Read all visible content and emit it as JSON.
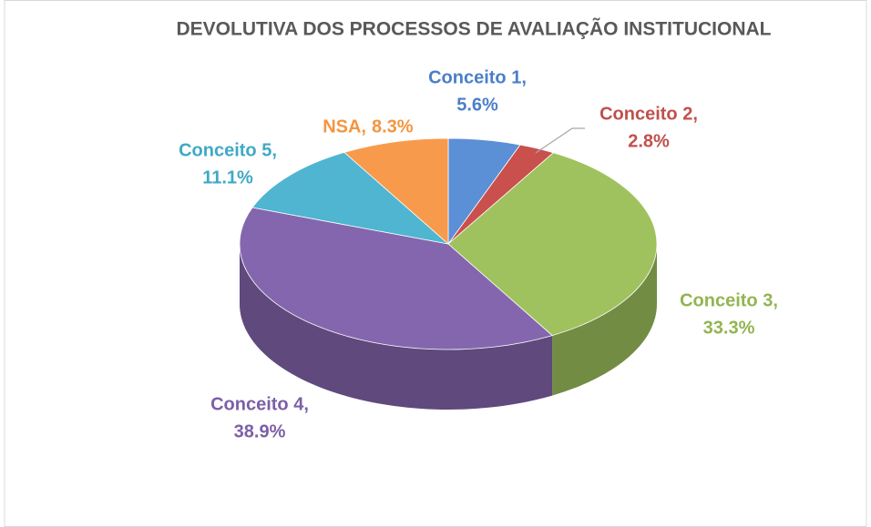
{
  "chart_data": {
    "type": "pie3d",
    "title": "DEVOLUTIVA DOS PROCESSOS DE AVALIAÇÃO INSTITUCIONAL",
    "categories": [
      "Conceito 1,",
      "Conceito 2,",
      "Conceito 3,",
      "Conceito 4,",
      "Conceito 5,",
      "NSA,"
    ],
    "values": [
      5.6,
      2.8,
      33.3,
      38.9,
      11.1,
      8.3
    ],
    "value_labels": [
      "5.6%",
      "2.8%",
      "33.3%",
      "38.9%",
      "11.1%",
      "8.3%"
    ],
    "colors": [
      "#5b8fd6",
      "#c9504c",
      "#9fc25e",
      "#8466ae",
      "#4fb5d0",
      "#f89a4c"
    ]
  }
}
